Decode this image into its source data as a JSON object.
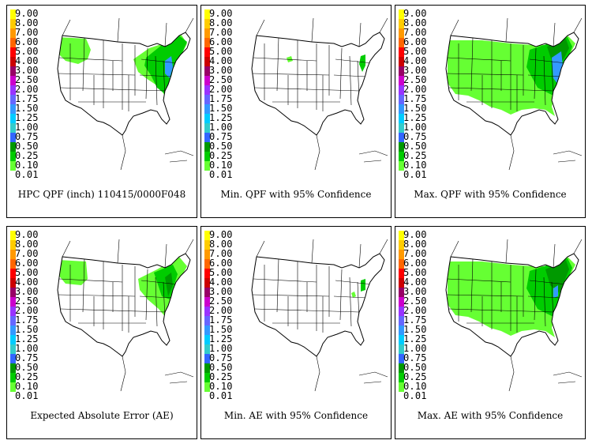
{
  "legend": {
    "labels": [
      "9.00",
      "8.00",
      "7.00",
      "6.00",
      "5.00",
      "4.00",
      "3.00",
      "2.50",
      "2.00",
      "1.75",
      "1.50",
      "1.25",
      "1.00",
      "0.75",
      "0.50",
      "0.25",
      "0.10",
      "0.01"
    ],
    "colors": [
      "#ffff00",
      "#ffcc00",
      "#ff9900",
      "#ff6600",
      "#ff0000",
      "#cc0000",
      "#990066",
      "#cc00cc",
      "#9933ff",
      "#6666ff",
      "#3399ff",
      "#00ccff",
      "#33cccc",
      "#3366ff",
      "#009900",
      "#00cc00",
      "#66ff33",
      "#ffffff"
    ]
  },
  "panels": [
    {
      "title": "HPC QPF (inch) 110415/0000F048",
      "pattern": "qpf"
    },
    {
      "title": "Min. QPF with 95% Confidence",
      "pattern": "minqpf"
    },
    {
      "title": "Max. QPF with 95% Confidence",
      "pattern": "maxqpf"
    },
    {
      "title": "Expected Absolute Error (AE)",
      "pattern": "ae"
    },
    {
      "title": "Min. AE with 95% Confidence",
      "pattern": "minae"
    },
    {
      "title": "Max. AE with 95% Confidence",
      "pattern": "maxae"
    }
  ],
  "colors": {
    "light_green": "#66ff33",
    "green": "#00cc00",
    "dark_green": "#009900",
    "blue": "#3399ff",
    "border": "#000000"
  }
}
